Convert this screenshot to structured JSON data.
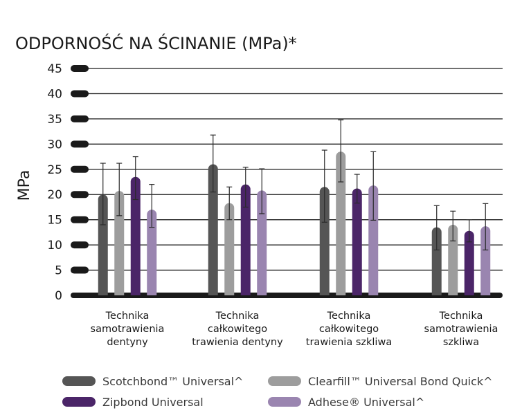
{
  "chart_data": {
    "type": "bar",
    "title": "ODPORNOŚĆ NA ŚCINANIE (MPa)*",
    "ylabel": "MPa",
    "xlabel": "",
    "ylim": [
      0,
      45
    ],
    "yticks": [
      "0",
      "5",
      "10",
      "15",
      "20",
      "25",
      "30",
      "35",
      "40",
      "45"
    ],
    "grid": true,
    "legend_position": "bottom",
    "categories": [
      [
        "Technika",
        "samotrawienia",
        "dentyny"
      ],
      [
        "Technika",
        "całkowitego",
        "trawienia dentyny"
      ],
      [
        "Technika",
        "całkowitego",
        "trawienia szkliwa"
      ],
      [
        "Technika",
        "samotrawienia",
        "szkliwa"
      ]
    ],
    "series": [
      {
        "name": "Scotchbond™ Universal^",
        "color": "#555555",
        "values": [
          20.0,
          26.0,
          21.5,
          13.5
        ],
        "err_low": [
          14.0,
          20.5,
          14.5,
          9.0
        ],
        "err_high": [
          26.2,
          31.8,
          28.8,
          17.8
        ]
      },
      {
        "name": "Clearfill™ Universal Bond Quick^",
        "color": "#9d9d9d",
        "values": [
          20.7,
          18.3,
          28.5,
          14.0
        ],
        "err_low": [
          15.8,
          15.0,
          22.5,
          10.8
        ],
        "err_high": [
          26.2,
          21.5,
          34.8,
          16.7
        ]
      },
      {
        "name": "Zipbond Universal",
        "color": "#4b2568",
        "values": [
          23.5,
          22.0,
          21.2,
          12.8
        ],
        "err_low": [
          19.0,
          17.5,
          18.3,
          10.6
        ],
        "err_high": [
          27.5,
          25.4,
          24.0,
          15.0
        ]
      },
      {
        "name": "Adhese® Universal^",
        "color": "#9a85b0",
        "values": [
          17.0,
          20.8,
          21.8,
          13.7
        ],
        "err_low": [
          13.5,
          16.2,
          14.9,
          9.0
        ],
        "err_high": [
          22.0,
          25.1,
          28.5,
          18.2
        ]
      }
    ]
  }
}
